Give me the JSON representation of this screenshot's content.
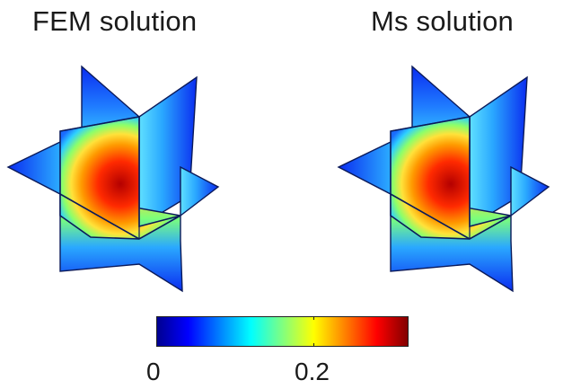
{
  "panels": [
    {
      "title": "FEM solution"
    },
    {
      "title": "Ms solution"
    }
  ],
  "colorbar": {
    "ticks": [
      {
        "value": 0,
        "label": "0"
      },
      {
        "value": 0.2,
        "label": "0.2"
      }
    ],
    "range": [
      0,
      0.32
    ],
    "colormap": "jet",
    "stops": [
      "#00008f",
      "#0000ff",
      "#0080ff",
      "#00ffff",
      "#80ff80",
      "#ffff00",
      "#ff8000",
      "#ff0000",
      "#800000"
    ]
  },
  "colors": {
    "low": "#0a2cf0",
    "mid": "#2fc6ff",
    "warm": "#ffd23a",
    "hot": "#ff2a00",
    "peak": "#b40000",
    "edge": "#0b1a5a"
  }
}
